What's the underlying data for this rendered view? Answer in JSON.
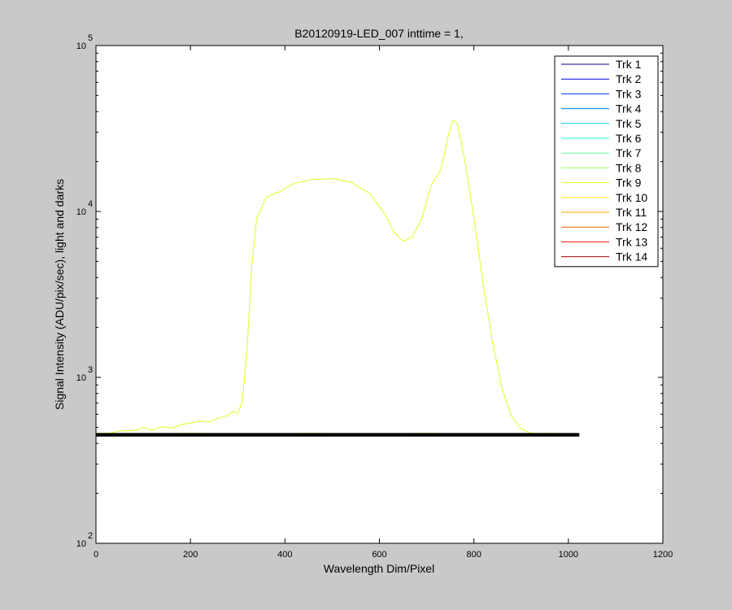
{
  "chart_data": {
    "type": "line",
    "title": "B20120919-LED_007 inttime = 1,",
    "xlabel": "Wavelength Dim/Pixel",
    "ylabel": "Signal Intensity (ADU/pix/sec), light and darks",
    "xlim": [
      0,
      1200
    ],
    "ylim": [
      100,
      100000
    ],
    "yscale": "log",
    "x_ticks": [
      0,
      200,
      400,
      600,
      800,
      1000,
      1200
    ],
    "y_ticks": [
      {
        "value": 100,
        "base": "10",
        "exp": "2"
      },
      {
        "value": 1000,
        "base": "10",
        "exp": "3"
      },
      {
        "value": 10000,
        "base": "10",
        "exp": "4"
      },
      {
        "value": 100000,
        "base": "10",
        "exp": "5"
      }
    ],
    "grid": false,
    "legend_position": "top-right",
    "series": [
      {
        "name": "Trk 1",
        "color": "#00008f",
        "baseline": 450
      },
      {
        "name": "Trk 2",
        "color": "#0000df",
        "baseline": 450
      },
      {
        "name": "Trk 3",
        "color": "#0030ff",
        "baseline": 451
      },
      {
        "name": "Trk 4",
        "color": "#0080ff",
        "baseline": 451
      },
      {
        "name": "Trk 5",
        "color": "#00cfff",
        "baseline": 452
      },
      {
        "name": "Trk 6",
        "color": "#20ffdf",
        "baseline": 452
      },
      {
        "name": "Trk 7",
        "color": "#60ffa0",
        "baseline": 453
      },
      {
        "name": "Trk 8",
        "color": "#9fff60",
        "baseline": 455
      },
      {
        "name": "Trk 9",
        "color": "#dfff20",
        "baseline": 455,
        "points": [
          [
            0,
            460
          ],
          [
            30,
            462
          ],
          [
            50,
            475
          ],
          [
            80,
            478
          ],
          [
            100,
            498
          ],
          [
            120,
            482
          ],
          [
            140,
            505
          ],
          [
            160,
            495
          ],
          [
            180,
            520
          ],
          [
            200,
            530
          ],
          [
            220,
            545
          ],
          [
            240,
            540
          ],
          [
            260,
            570
          ],
          [
            280,
            590
          ],
          [
            290,
            625
          ],
          [
            300,
            605
          ],
          [
            310,
            720
          ],
          [
            320,
            1500
          ],
          [
            330,
            4800
          ],
          [
            340,
            9000
          ],
          [
            360,
            12200
          ],
          [
            390,
            13200
          ],
          [
            420,
            14800
          ],
          [
            460,
            15600
          ],
          [
            500,
            15800
          ],
          [
            540,
            15000
          ],
          [
            580,
            12800
          ],
          [
            610,
            9800
          ],
          [
            630,
            7600
          ],
          [
            650,
            6600
          ],
          [
            670,
            7000
          ],
          [
            690,
            9200
          ],
          [
            710,
            14500
          ],
          [
            730,
            17800
          ],
          [
            745,
            28000
          ],
          [
            755,
            35500
          ],
          [
            765,
            34000
          ],
          [
            780,
            21000
          ],
          [
            800,
            9200
          ],
          [
            820,
            3600
          ],
          [
            840,
            1600
          ],
          [
            860,
            850
          ],
          [
            880,
            580
          ],
          [
            900,
            490
          ],
          [
            920,
            462
          ],
          [
            940,
            458
          ],
          [
            1020,
            455
          ]
        ]
      },
      {
        "name": "Trk 10",
        "color": "#ffef00",
        "baseline": 458
      },
      {
        "name": "Trk 11",
        "color": "#ffa000",
        "baseline": 456
      },
      {
        "name": "Trk 12",
        "color": "#ff6000",
        "baseline": 455
      },
      {
        "name": "Trk 13",
        "color": "#ef1000",
        "baseline": 454
      },
      {
        "name": "Trk 14",
        "color": "#af0000",
        "baseline": 452
      }
    ]
  }
}
